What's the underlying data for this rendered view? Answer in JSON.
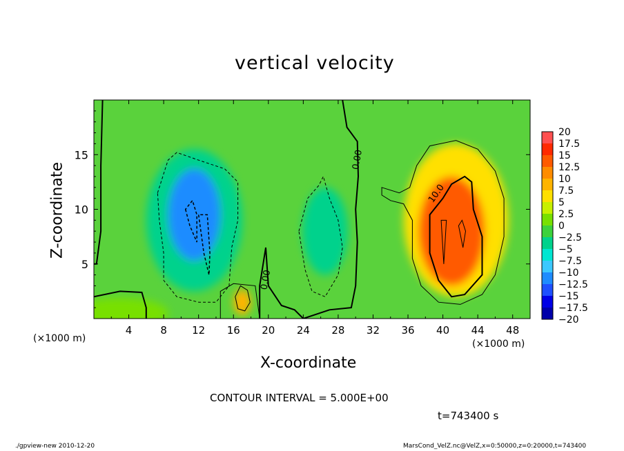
{
  "chart_data": {
    "type": "heatmap",
    "title": "vertical velocity",
    "xlabel": "X-coordinate",
    "ylabel": "Z-coordinate",
    "x_unit_label": "(×1000 m)",
    "y_unit_label": "(×1000 m)",
    "xlim": [
      0,
      50
    ],
    "ylim": [
      0,
      20
    ],
    "x_ticks": [
      4,
      8,
      12,
      16,
      20,
      24,
      28,
      32,
      36,
      40,
      44,
      48
    ],
    "y_ticks": [
      5,
      10,
      15
    ],
    "colorbar": {
      "levels": [
        20,
        17.5,
        15,
        12.5,
        10,
        7.5,
        5,
        2.5,
        0,
        -2.5,
        -5,
        -7.5,
        -10,
        -12.5,
        -15,
        -17.5,
        -20
      ],
      "colors": [
        "#f08080",
        "#ff5050",
        "#ff2a00",
        "#ff5a00",
        "#ff8c00",
        "#ffb400",
        "#ffe000",
        "#c8f000",
        "#78e000",
        "#3cd23c",
        "#00d28c",
        "#00e6d2",
        "#3cc8ff",
        "#1e8cff",
        "#1e50ff",
        "#0000e6",
        "#0000aa",
        "#7830c8"
      ]
    },
    "features": [
      {
        "label": "0.00",
        "kind": "contour-label",
        "x": 30.5,
        "z": 14.5
      },
      {
        "label": "0.00",
        "kind": "contour-label",
        "x": 20.0,
        "z": 3.5
      },
      {
        "label": "10.0",
        "kind": "contour-label",
        "x": 39.5,
        "z": 11.3
      }
    ],
    "blobs": [
      {
        "x": 11.5,
        "z": 9.5,
        "rx": 3.0,
        "rz": 4.2,
        "value": -11.5
      },
      {
        "x": 11.5,
        "z": 9.0,
        "rx": 5.5,
        "rz": 6.5,
        "value": -5.0
      },
      {
        "x": 26.5,
        "z": 8.0,
        "rx": 2.6,
        "rz": 4.0,
        "value": -3.0
      },
      {
        "x": 41.0,
        "z": 8.0,
        "rx": 3.8,
        "rz": 5.0,
        "value": 12.5
      },
      {
        "x": 41.5,
        "z": 9.0,
        "rx": 6.0,
        "rz": 7.0,
        "value": 6.5
      },
      {
        "x": 17.0,
        "z": 1.5,
        "rx": 1.0,
        "rz": 1.2,
        "value": 7.5
      }
    ],
    "contour_interval_text": "CONTOUR INTERVAL = 5.000E+00",
    "time_text": "t=743400 s"
  },
  "footer": {
    "left": "./gpview-new  2010-12-20",
    "right": "MarsCond_VelZ.nc@VelZ,x=0:50000,z=0:20000,t=743400"
  },
  "colors": {
    "background_field": "#5ad23c"
  }
}
